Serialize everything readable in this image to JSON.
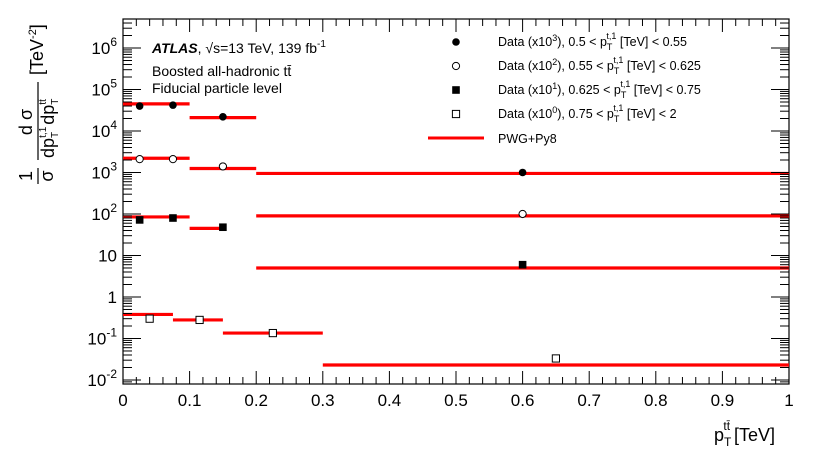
{
  "chart_data": {
    "type": "scatter",
    "experiment": "ATLAS",
    "info_energy": ", √s=13 TeV, 139 fb",
    "info_energy_sup": "-1",
    "info_line2": "Boosted all-hadronic tt̄",
    "info_line3": "Fiducial particle level",
    "xlabel": "p",
    "xlabel_sub": "T",
    "xlabel_sup": "tt̄",
    "xlabel_unit": "[TeV]",
    "ylabel_frac_num": "1",
    "ylabel_frac_den": "σ",
    "ylabel_num": "d σ",
    "ylabel_unit": "[TeV",
    "ylabel_unit_sup": "-2",
    "ylabel_unit_close": "]",
    "xlim": [
      0,
      1
    ],
    "ylim": [
      0.008,
      5000000
    ],
    "yscale": "log",
    "x_ticks": [
      {
        "v": 0,
        "label": "0"
      },
      {
        "v": 0.1,
        "label": "0.1"
      },
      {
        "v": 0.2,
        "label": "0.2"
      },
      {
        "v": 0.3,
        "label": "0.3"
      },
      {
        "v": 0.4,
        "label": "0.4"
      },
      {
        "v": 0.5,
        "label": "0.5"
      },
      {
        "v": 0.6,
        "label": "0.6"
      },
      {
        "v": 0.7,
        "label": "0.7"
      },
      {
        "v": 0.8,
        "label": "0.8"
      },
      {
        "v": 0.9,
        "label": "0.9"
      },
      {
        "v": 1,
        "label": "1"
      }
    ],
    "y_ticks": [
      {
        "v": 0.01,
        "base": "10",
        "exp": "-2"
      },
      {
        "v": 0.1,
        "base": "10",
        "exp": "-1"
      },
      {
        "v": 1,
        "base": "1",
        "exp": ""
      },
      {
        "v": 10,
        "base": "10",
        "exp": ""
      },
      {
        "v": 100,
        "base": "10",
        "exp": "2"
      },
      {
        "v": 1000,
        "base": "10",
        "exp": "3"
      },
      {
        "v": 10000,
        "base": "10",
        "exp": "4"
      },
      {
        "v": 100000,
        "base": "10",
        "exp": "5"
      },
      {
        "v": 1000000,
        "base": "10",
        "exp": "6"
      }
    ],
    "series": [
      {
        "name": "Data (x10³), 0.5 < p_T^{t,1} [TeV] < 0.55",
        "leg_pre": "Data (x10",
        "leg_scale": "3",
        "leg_mid": "), 0.5 < p",
        "leg_sub": "T",
        "leg_sup": "t,1",
        "leg_post": " [TeV] < 0.55",
        "marker": "filled-circle",
        "points": [
          {
            "x": 0.025,
            "y": 40000
          },
          {
            "x": 0.075,
            "y": 42000
          },
          {
            "x": 0.15,
            "y": 22000
          },
          {
            "x": 0.6,
            "y": 1000
          }
        ],
        "prediction": [
          {
            "x0": 0.0,
            "x1": 0.1,
            "y": 45000
          },
          {
            "x0": 0.1,
            "x1": 0.2,
            "y": 21000
          },
          {
            "x0": 0.2,
            "x1": 1.0,
            "y": 950
          }
        ]
      },
      {
        "name": "Data (x10²), 0.55 < p_T^{t,1} [TeV] < 0.625",
        "leg_pre": "Data (x10",
        "leg_scale": "2",
        "leg_mid": "), 0.55 < p",
        "leg_sub": "T",
        "leg_sup": "t,1",
        "leg_post": " [TeV] < 0.625",
        "marker": "open-circle",
        "points": [
          {
            "x": 0.025,
            "y": 2100
          },
          {
            "x": 0.075,
            "y": 2100
          },
          {
            "x": 0.15,
            "y": 1400
          },
          {
            "x": 0.6,
            "y": 100
          }
        ],
        "prediction": [
          {
            "x0": 0.0,
            "x1": 0.1,
            "y": 2200
          },
          {
            "x0": 0.1,
            "x1": 0.2,
            "y": 1250
          },
          {
            "x0": 0.2,
            "x1": 1.0,
            "y": 90
          }
        ]
      },
      {
        "name": "Data (x10¹), 0.625 < p_T^{t,1} [TeV] < 0.75",
        "leg_pre": "Data (x10",
        "leg_scale": "1",
        "leg_mid": "), 0.625 < p",
        "leg_sub": "T",
        "leg_sup": "t,1",
        "leg_post": " [TeV] < 0.75",
        "marker": "filled-square",
        "points": [
          {
            "x": 0.025,
            "y": 72
          },
          {
            "x": 0.075,
            "y": 80
          },
          {
            "x": 0.15,
            "y": 48
          },
          {
            "x": 0.6,
            "y": 6
          }
        ],
        "prediction": [
          {
            "x0": 0.0,
            "x1": 0.1,
            "y": 85
          },
          {
            "x0": 0.1,
            "x1": 0.15,
            "y": 45
          },
          {
            "x0": 0.2,
            "x1": 1.0,
            "y": 5
          }
        ]
      },
      {
        "name": "Data (x10⁰), 0.75 < p_T^{t,1} [TeV] < 2",
        "leg_pre": "Data (x10",
        "leg_scale": "0",
        "leg_mid": "), 0.75 < p",
        "leg_sub": "T",
        "leg_sup": "t,1",
        "leg_post": " [TeV] < 2",
        "marker": "open-square",
        "points": [
          {
            "x": 0.04,
            "y": 0.3
          },
          {
            "x": 0.115,
            "y": 0.28
          },
          {
            "x": 0.225,
            "y": 0.135
          },
          {
            "x": 0.65,
            "y": 0.033
          }
        ],
        "prediction": [
          {
            "x0": 0.0,
            "x1": 0.075,
            "y": 0.38
          },
          {
            "x0": 0.075,
            "x1": 0.15,
            "y": 0.28
          },
          {
            "x0": 0.15,
            "x1": 0.3,
            "y": 0.135
          },
          {
            "x0": 0.3,
            "x1": 1.0,
            "y": 0.023
          }
        ]
      }
    ],
    "prediction_label": "PWG+Py8",
    "prediction_color": "#ff0000",
    "legend_position": "top-right"
  }
}
